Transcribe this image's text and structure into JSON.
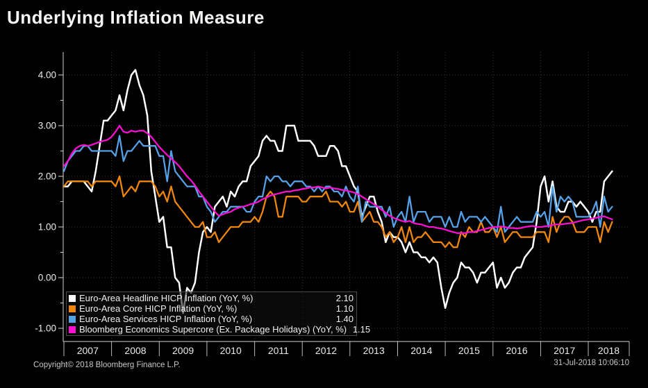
{
  "title": "Underlying Inflation Measure",
  "footer": {
    "copyright": "Copyright© 2018 Bloomberg Finance L.P.",
    "timestamp": "31-Jul-2018 10:06:10"
  },
  "colors": {
    "background": "#000000",
    "axis": "#d4d4d4",
    "grid": "#3a3a3a",
    "title_text": "#f4f4f2",
    "label_text": "#ececec"
  },
  "chart_data": {
    "type": "line",
    "title": "Underlying Inflation Measure",
    "xlabel": "",
    "ylabel": "",
    "x": {
      "start": "2007-01",
      "end": "2018-07",
      "frequency": "monthly",
      "points_per_series": 139
    },
    "x_tick_labels": [
      "2007",
      "2008",
      "2009",
      "2010",
      "2011",
      "2012",
      "2013",
      "2014",
      "2015",
      "2016",
      "2017",
      "2018"
    ],
    "y_ticks": [
      -1.0,
      0.0,
      1.0,
      2.0,
      3.0,
      4.0
    ],
    "y_tick_labels": [
      "-1.00",
      "0.00",
      "1.00",
      "2.00",
      "3.00",
      "4.00"
    ],
    "ylim": [
      -1.26,
      4.45
    ],
    "grid": true,
    "legend_position": "bottom-left",
    "series": [
      {
        "id": "headline",
        "name": "Euro-Area Headline HICP Inflation (YoY, %)",
        "color": "#ffffff",
        "last_value": 2.1,
        "last_value_label": "2.10",
        "values": [
          1.8,
          1.8,
          1.9,
          1.9,
          1.9,
          1.9,
          1.8,
          1.7,
          2.1,
          2.6,
          3.1,
          3.1,
          3.2,
          3.3,
          3.6,
          3.3,
          3.7,
          4.0,
          4.1,
          3.8,
          3.6,
          3.2,
          2.1,
          1.6,
          1.1,
          1.2,
          0.6,
          0.6,
          0.0,
          -0.1,
          -0.7,
          -0.2,
          -0.3,
          -0.1,
          0.5,
          0.9,
          1.0,
          0.9,
          1.4,
          1.5,
          1.6,
          1.4,
          1.7,
          1.6,
          1.8,
          1.9,
          1.9,
          2.2,
          2.3,
          2.4,
          2.7,
          2.8,
          2.7,
          2.7,
          2.5,
          2.5,
          3.0,
          3.0,
          3.0,
          2.7,
          2.7,
          2.7,
          2.7,
          2.6,
          2.4,
          2.4,
          2.4,
          2.6,
          2.6,
          2.5,
          2.2,
          2.2,
          2.0,
          1.8,
          1.7,
          1.2,
          1.4,
          1.6,
          1.6,
          1.3,
          1.1,
          0.7,
          0.9,
          0.8,
          0.8,
          0.7,
          0.5,
          0.7,
          0.5,
          0.5,
          0.4,
          0.4,
          0.3,
          0.4,
          0.3,
          -0.2,
          -0.6,
          -0.3,
          -0.1,
          0.0,
          0.3,
          0.2,
          0.2,
          0.1,
          -0.1,
          0.1,
          0.1,
          0.2,
          0.3,
          -0.2,
          0.0,
          -0.2,
          -0.1,
          0.1,
          0.2,
          0.2,
          0.4,
          0.5,
          0.6,
          1.1,
          1.8,
          2.0,
          1.5,
          1.9,
          1.4,
          1.3,
          1.3,
          1.5,
          1.5,
          1.4,
          1.5,
          1.4,
          1.3,
          1.1,
          1.3,
          1.3,
          1.9,
          2.0,
          2.1
        ]
      },
      {
        "id": "core",
        "name": "Euro-Area Core HICP Inflation (YoY, %)",
        "color": "#f0860c",
        "last_value": 1.1,
        "last_value_label": "1.10",
        "values": [
          1.8,
          1.9,
          1.9,
          1.9,
          1.9,
          1.9,
          1.9,
          1.8,
          1.9,
          1.9,
          1.9,
          1.9,
          1.9,
          1.8,
          2.0,
          1.6,
          1.7,
          1.8,
          1.7,
          1.9,
          1.9,
          1.9,
          1.9,
          1.8,
          1.6,
          1.7,
          1.5,
          1.8,
          1.5,
          1.4,
          1.3,
          1.2,
          1.1,
          1.0,
          1.0,
          1.1,
          0.8,
          0.8,
          0.9,
          0.7,
          0.8,
          0.9,
          1.0,
          1.0,
          1.0,
          1.1,
          1.1,
          1.1,
          1.2,
          1.1,
          1.3,
          1.6,
          1.7,
          1.6,
          1.2,
          1.2,
          1.6,
          1.6,
          1.6,
          1.6,
          1.5,
          1.5,
          1.6,
          1.6,
          1.6,
          1.6,
          1.7,
          1.5,
          1.5,
          1.5,
          1.4,
          1.5,
          1.3,
          1.3,
          1.5,
          1.1,
          1.2,
          1.3,
          1.1,
          1.1,
          1.0,
          0.8,
          0.9,
          0.7,
          0.8,
          1.0,
          0.7,
          1.0,
          0.7,
          0.8,
          0.8,
          0.9,
          0.8,
          0.7,
          0.7,
          0.7,
          0.6,
          0.7,
          0.6,
          0.6,
          0.9,
          0.8,
          1.0,
          0.9,
          0.9,
          1.1,
          0.9,
          0.9,
          1.0,
          0.8,
          1.0,
          0.7,
          0.8,
          0.9,
          0.9,
          0.8,
          0.8,
          0.8,
          0.8,
          0.9,
          0.9,
          0.9,
          0.7,
          1.2,
          0.9,
          1.1,
          1.2,
          1.2,
          1.1,
          0.9,
          0.9,
          0.9,
          1.0,
          1.0,
          1.0,
          0.7,
          1.1,
          0.9,
          1.1
        ]
      },
      {
        "id": "services",
        "name": "Euro-Area Services HICP Inflation (YoY, %)",
        "color": "#55a1e8",
        "last_value": 1.4,
        "last_value_label": "1.40",
        "values": [
          2.1,
          2.3,
          2.4,
          2.5,
          2.5,
          2.6,
          2.6,
          2.5,
          2.5,
          2.5,
          2.5,
          2.5,
          2.5,
          2.4,
          2.8,
          2.3,
          2.5,
          2.5,
          2.6,
          2.7,
          2.6,
          2.6,
          2.6,
          2.6,
          2.4,
          2.4,
          1.9,
          2.5,
          2.1,
          2.0,
          1.9,
          1.8,
          1.8,
          1.8,
          1.6,
          1.6,
          1.4,
          1.3,
          1.1,
          1.2,
          1.3,
          1.3,
          1.4,
          1.4,
          1.4,
          1.4,
          1.3,
          1.3,
          1.5,
          1.6,
          1.6,
          2.0,
          1.9,
          2.0,
          2.0,
          1.9,
          1.9,
          1.8,
          1.9,
          1.9,
          1.9,
          1.8,
          1.8,
          1.7,
          1.8,
          1.7,
          1.8,
          1.8,
          1.7,
          1.7,
          1.6,
          1.8,
          1.6,
          1.5,
          1.8,
          1.1,
          1.5,
          1.4,
          1.4,
          1.4,
          1.4,
          1.2,
          1.4,
          1.0,
          1.2,
          1.3,
          1.1,
          1.6,
          1.1,
          1.3,
          1.3,
          1.3,
          1.1,
          1.2,
          1.2,
          1.2,
          1.0,
          1.2,
          1.0,
          1.0,
          1.3,
          1.1,
          1.2,
          1.2,
          1.2,
          1.1,
          1.2,
          1.1,
          1.0,
          0.9,
          1.4,
          0.9,
          1.0,
          1.1,
          1.2,
          1.1,
          1.1,
          1.1,
          1.1,
          1.3,
          1.2,
          1.3,
          1.0,
          1.8,
          1.3,
          1.6,
          1.5,
          1.6,
          1.5,
          1.2,
          1.2,
          1.2,
          1.2,
          1.3,
          1.5,
          1.0,
          1.6,
          1.3,
          1.4
        ]
      },
      {
        "id": "supercore",
        "name": "Bloomberg Economics Supercore (Ex. Package Holidays) (YoY, %)",
        "color": "#fb10d2",
        "last_value": 1.15,
        "last_value_label": "1.15",
        "values": [
          2.2,
          2.3,
          2.45,
          2.55,
          2.6,
          2.62,
          2.6,
          2.62,
          2.65,
          2.68,
          2.7,
          2.72,
          2.78,
          2.88,
          3.0,
          2.88,
          2.86,
          2.9,
          2.88,
          2.9,
          2.9,
          2.85,
          2.78,
          2.68,
          2.58,
          2.5,
          2.42,
          2.35,
          2.28,
          2.2,
          2.1,
          2.0,
          1.92,
          1.82,
          1.7,
          1.6,
          1.5,
          1.4,
          1.3,
          1.22,
          1.25,
          1.28,
          1.3,
          1.35,
          1.38,
          1.4,
          1.42,
          1.45,
          1.47,
          1.5,
          1.55,
          1.58,
          1.62,
          1.64,
          1.66,
          1.68,
          1.7,
          1.7,
          1.72,
          1.73,
          1.75,
          1.76,
          1.78,
          1.78,
          1.8,
          1.78,
          1.76,
          1.78,
          1.76,
          1.75,
          1.73,
          1.72,
          1.7,
          1.68,
          1.65,
          1.6,
          1.55,
          1.5,
          1.45,
          1.4,
          1.34,
          1.28,
          1.22,
          1.18,
          1.15,
          1.12,
          1.1,
          1.12,
          1.08,
          1.06,
          1.05,
          1.02,
          1.0,
          1.0,
          0.98,
          0.97,
          0.95,
          0.92,
          0.9,
          0.88,
          0.88,
          0.88,
          0.9,
          0.9,
          0.92,
          0.94,
          0.96,
          0.98,
          1.0,
          1.0,
          1.01,
          1.0,
          0.98,
          0.98,
          0.97,
          0.98,
          1.0,
          1.01,
          1.02,
          1.0,
          1.0,
          1.01,
          1.02,
          1.04,
          1.05,
          1.05,
          1.06,
          1.07,
          1.08,
          1.1,
          1.12,
          1.14,
          1.15,
          1.17,
          1.18,
          1.2,
          1.21,
          1.18,
          1.15
        ]
      }
    ]
  }
}
